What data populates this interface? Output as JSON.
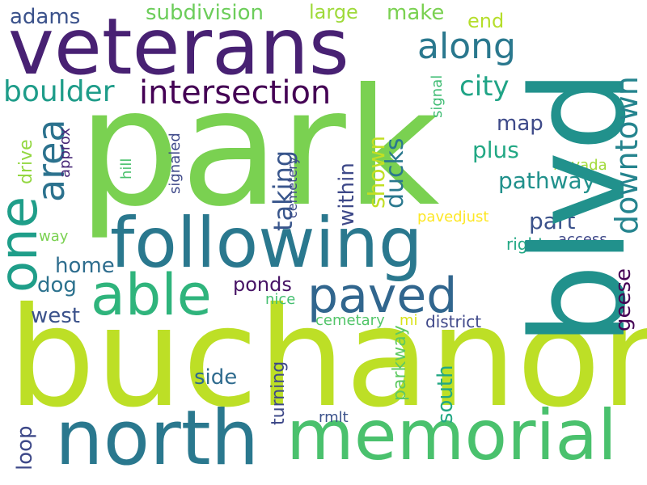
{
  "word_cloud": {
    "words": [
      {
        "text": "park",
        "color": "#7ad151"
      },
      {
        "text": "buchanon",
        "color": "#bddf26"
      },
      {
        "text": "blvd",
        "color": "#21918c"
      },
      {
        "text": "veterans",
        "color": "#482173"
      },
      {
        "text": "following",
        "color": "#2a788e"
      },
      {
        "text": "north",
        "color": "#2a788e"
      },
      {
        "text": "memorial",
        "color": "#4ac16d"
      },
      {
        "text": "able",
        "color": "#2fb47c"
      },
      {
        "text": "paved",
        "color": "#31668e"
      },
      {
        "text": "one",
        "color": "#1f9e89"
      },
      {
        "text": "intersection",
        "color": "#440154"
      },
      {
        "text": "boulder",
        "color": "#1e9c89"
      },
      {
        "text": "along",
        "color": "#2a788e"
      },
      {
        "text": "area",
        "color": "#2c728e"
      },
      {
        "text": "downtown",
        "color": "#25848e"
      },
      {
        "text": "city",
        "color": "#20a486"
      },
      {
        "text": "adams",
        "color": "#3b528b"
      },
      {
        "text": "subdivision",
        "color": "#6ccd5a"
      },
      {
        "text": "large",
        "color": "#9fda3a"
      },
      {
        "text": "make",
        "color": "#7ad151"
      },
      {
        "text": "end",
        "color": "#b5de2b"
      },
      {
        "text": "map",
        "color": "#3e4a89"
      },
      {
        "text": "plus",
        "color": "#22a884"
      },
      {
        "text": "taking",
        "color": "#39568c"
      },
      {
        "text": "ducks",
        "color": "#2a788e"
      },
      {
        "text": "shown",
        "color": "#c2df23"
      },
      {
        "text": "within",
        "color": "#3e4989"
      },
      {
        "text": "pathway",
        "color": "#21918c"
      },
      {
        "text": "part",
        "color": "#3b528b"
      },
      {
        "text": "drive",
        "color": "#93d741"
      },
      {
        "text": "approx",
        "color": "#482878"
      },
      {
        "text": "hill",
        "color": "#4ac16d"
      },
      {
        "text": "signaled",
        "color": "#3e4989"
      },
      {
        "text": "cemetery",
        "color": "#3e4a89"
      },
      {
        "text": "signal",
        "color": "#3fbc73"
      },
      {
        "text": "nevada",
        "color": "#a0da39"
      },
      {
        "text": "pavedjust",
        "color": "#fde725"
      },
      {
        "text": "way",
        "color": "#7ad151"
      },
      {
        "text": "right",
        "color": "#22a884"
      },
      {
        "text": "access",
        "color": "#3e4989"
      },
      {
        "text": "home",
        "color": "#2e6d8e"
      },
      {
        "text": "dog",
        "color": "#2c728e"
      },
      {
        "text": "ponds",
        "color": "#471365"
      },
      {
        "text": "geese",
        "color": "#440154"
      },
      {
        "text": "west",
        "color": "#3b528b"
      },
      {
        "text": "nice",
        "color": "#44bf70"
      },
      {
        "text": "cemetary",
        "color": "#52c569"
      },
      {
        "text": "mi",
        "color": "#dae319"
      },
      {
        "text": "district",
        "color": "#3f4889"
      },
      {
        "text": "side",
        "color": "#2f6b8e"
      },
      {
        "text": "south",
        "color": "#22a884"
      },
      {
        "text": "parkway",
        "color": "#5ec962"
      },
      {
        "text": "turning",
        "color": "#3e4989"
      },
      {
        "text": "loop",
        "color": "#3e4989"
      },
      {
        "text": "rmlt",
        "color": "#3b528b"
      }
    ]
  }
}
